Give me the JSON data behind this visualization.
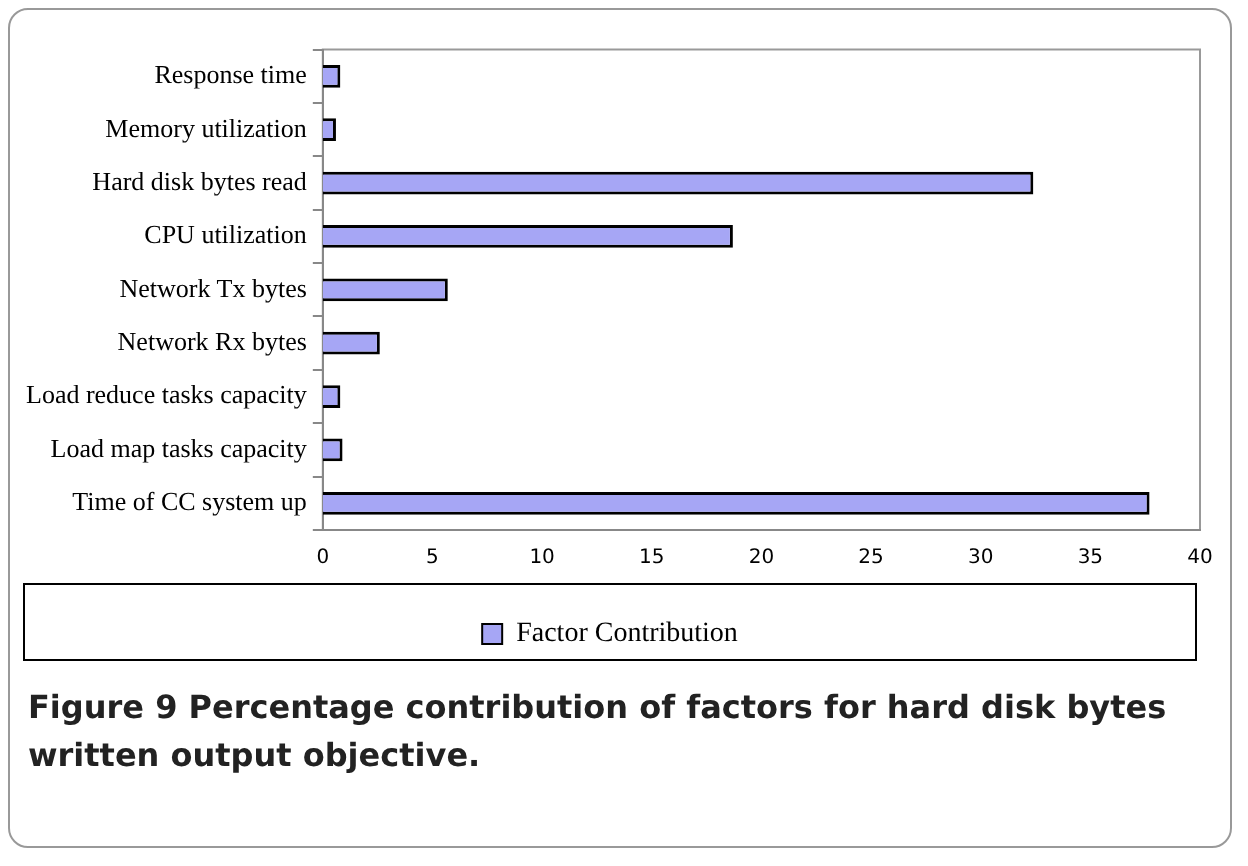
{
  "chart_data": {
    "type": "bar",
    "orientation": "horizontal",
    "categories": [
      "Response time",
      "Memory utilization",
      "Hard disk bytes read",
      "CPU utilization",
      "Network Tx bytes",
      "Network Rx bytes",
      "Load reduce tasks capacity",
      "Load map tasks capacity",
      "Time of CC system up"
    ],
    "series": [
      {
        "name": "Factor Contribution",
        "color": "#a6a6f5",
        "values": [
          0.8,
          0.6,
          32.4,
          18.7,
          5.7,
          2.6,
          0.8,
          0.9,
          37.7
        ]
      }
    ],
    "xlim": [
      0,
      40
    ],
    "xticks": [
      0,
      5,
      10,
      15,
      20,
      25,
      30,
      35,
      40
    ],
    "grid": false,
    "legend": "bottom",
    "annotations": [
      "Figure 9 Percentage contribution of factors for hard disk bytes written output objective."
    ]
  }
}
